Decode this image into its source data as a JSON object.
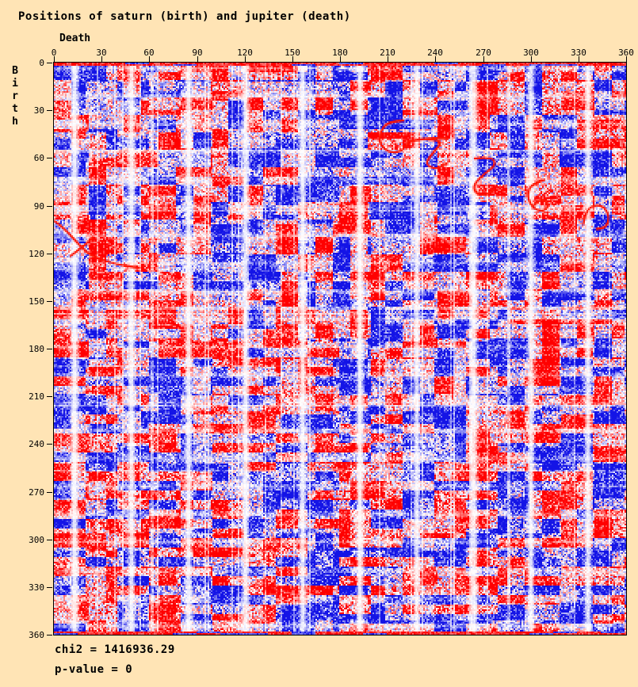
{
  "title": "Positions of saturn (birth) and jupiter (death)",
  "axes": {
    "x": {
      "label": "Death",
      "min": 0,
      "max": 360,
      "tick_step": 30,
      "ticks": [
        0,
        30,
        60,
        90,
        120,
        150,
        180,
        210,
        240,
        270,
        300,
        330,
        360
      ]
    },
    "y": {
      "label": "Birth",
      "min": 0,
      "max": 360,
      "tick_step": 30,
      "ticks": [
        0,
        30,
        60,
        90,
        120,
        150,
        180,
        210,
        240,
        270,
        300,
        330,
        360
      ]
    }
  },
  "stats": {
    "chi2": "chi2 = 1416936.29",
    "p_value": "p-value = 0"
  },
  "colors": {
    "background": "#FFE4B5",
    "text": "#000000",
    "plot_border": "#000000",
    "heat_positive": "#FF0000",
    "heat_zero": "#FFFFFF",
    "heat_negative": "#1414E6",
    "annotation": "#FF1400"
  },
  "chart_data": {
    "type": "heatmap",
    "title": "Positions of saturn (birth) and jupiter (death)",
    "xlabel": "Death",
    "ylabel": "Birth",
    "x_range": [
      0,
      360
    ],
    "y_range": [
      0,
      360
    ],
    "x_ticks": [
      0,
      30,
      60,
      90,
      120,
      150,
      180,
      210,
      240,
      270,
      300,
      330,
      360
    ],
    "y_ticks": [
      0,
      30,
      60,
      90,
      120,
      150,
      180,
      210,
      240,
      270,
      300,
      330,
      360
    ],
    "grid": false,
    "legend": "none",
    "cell_size_deg": 1,
    "cell_size_px": 2,
    "colormap": {
      "positive": "#FF0000",
      "zero": "#FFFFFF",
      "negative": "#1414E6"
    },
    "statistics": {
      "chi2": 1416936.29,
      "p_value": 0
    },
    "description": "361x361 chi-square deviation heatmap of Saturn ecliptic longitude at birth (rows, 0-360 deg) vs Jupiter longitude at death (columns, 0-360 deg). Red = excess, blue = deficit, white = neutral. Texture is blocky saturated red/blue patches (~11x11 deg squares in upper rows, ~20x6 deg strips lower) with near-white vertical bands about every 36 deg and fainter light horizontal bands about every 17.6 deg; solid red strips along top and bottom edges; thin red curve artifacts overlay the field.",
    "pattern": {
      "grid": 361,
      "block_a": {
        "w": 11,
        "h": 11
      },
      "block_b": {
        "w": 20,
        "h": 6
      },
      "noise_amp": 1.2,
      "gain": 1.35,
      "light_columns": {
        "period": 36,
        "offset": 12.5,
        "sigma": 1.9,
        "depth": 0.92
      },
      "light_rows": {
        "period": 17.6,
        "offset": 3,
        "sigma": 1.15,
        "depth": 0.5
      },
      "random_light_col_prob": 0.05,
      "random_light_row_prob": 0.05
    },
    "annotation_curves": {
      "color": "#FF1400",
      "paths": [
        [
          [
            220.5,
            36.5
          ],
          [
            211,
            37
          ],
          [
            205.5,
            44
          ],
          [
            205.5,
            52
          ],
          [
            212,
            57
          ],
          [
            220,
            56
          ],
          [
            223,
            51.5
          ]
        ],
        [
          [
            223,
            50
          ],
          [
            235,
            47.5
          ],
          [
            248,
            48
          ]
        ],
        [
          [
            236,
            48.5
          ],
          [
            246.5,
            48.5
          ],
          [
            239,
            57
          ],
          [
            234,
            64
          ],
          [
            241,
            67.5
          ],
          [
            247.5,
            63.5
          ]
        ],
        [
          [
            265.5,
            60.5
          ],
          [
            276.5,
            59.5
          ],
          [
            279,
            64.5
          ],
          [
            271,
            70.5
          ],
          [
            264.5,
            77.5
          ],
          [
            266,
            82.5
          ],
          [
            272.5,
            84
          ],
          [
            277.5,
            80
          ]
        ],
        [
          [
            309.5,
            74
          ],
          [
            302,
            76
          ],
          [
            298.5,
            82.5
          ],
          [
            300.5,
            90
          ],
          [
            307,
            94.5
          ],
          [
            312.5,
            91
          ],
          [
            310,
            86.5
          ],
          [
            304.5,
            87
          ],
          [
            302,
            92
          ]
        ],
        [
          [
            334,
            102
          ],
          [
            335.5,
            93.5
          ],
          [
            341.5,
            89.5
          ],
          [
            347.5,
            91
          ],
          [
            350.5,
            97.5
          ],
          [
            348.5,
            104
          ],
          [
            342.5,
            105
          ]
        ],
        [
          [
            0.5,
            100
          ],
          [
            7.5,
            105.5
          ],
          [
            14,
            113
          ],
          [
            20.5,
            119.5
          ],
          [
            26,
            123
          ],
          [
            40,
            127.5
          ],
          [
            54,
            129.5
          ]
        ],
        [
          [
            10.5,
            122
          ],
          [
            18,
            116.5
          ],
          [
            24.5,
            110.5
          ]
        ]
      ]
    }
  }
}
